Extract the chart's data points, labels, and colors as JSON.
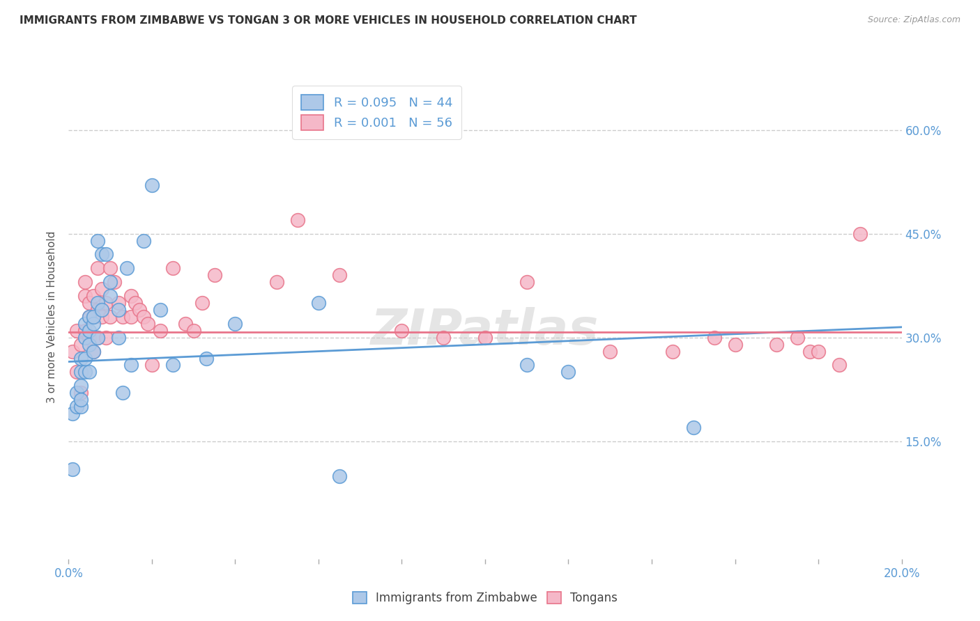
{
  "title": "IMMIGRANTS FROM ZIMBABWE VS TONGAN 3 OR MORE VEHICLES IN HOUSEHOLD CORRELATION CHART",
  "source": "Source: ZipAtlas.com",
  "ylabel": "3 or more Vehicles in Household",
  "yticks_labels": [
    "60.0%",
    "45.0%",
    "30.0%",
    "15.0%"
  ],
  "ytick_vals": [
    0.6,
    0.45,
    0.3,
    0.15
  ],
  "xlim": [
    0.0,
    0.2
  ],
  "ylim": [
    -0.02,
    0.68
  ],
  "legend1_label": "R = 0.095   N = 44",
  "legend2_label": "R = 0.001   N = 56",
  "series1_color": "#adc8e8",
  "series2_color": "#f5b8c8",
  "line1_color": "#5b9bd5",
  "line2_color": "#e8748a",
  "background_color": "#ffffff",
  "grid_color": "#cccccc",
  "watermark": "ZIPatlas",
  "tick_color": "#5b9bd5",
  "zimbabwe_x": [
    0.001,
    0.001,
    0.002,
    0.002,
    0.003,
    0.003,
    0.003,
    0.003,
    0.003,
    0.004,
    0.004,
    0.004,
    0.004,
    0.005,
    0.005,
    0.005,
    0.005,
    0.006,
    0.006,
    0.006,
    0.007,
    0.007,
    0.007,
    0.008,
    0.008,
    0.009,
    0.01,
    0.01,
    0.012,
    0.012,
    0.013,
    0.014,
    0.015,
    0.018,
    0.02,
    0.022,
    0.025,
    0.033,
    0.04,
    0.06,
    0.065,
    0.11,
    0.12,
    0.15
  ],
  "zimbabwe_y": [
    0.11,
    0.19,
    0.2,
    0.22,
    0.2,
    0.21,
    0.23,
    0.25,
    0.27,
    0.25,
    0.27,
    0.3,
    0.32,
    0.25,
    0.29,
    0.31,
    0.33,
    0.28,
    0.32,
    0.33,
    0.3,
    0.35,
    0.44,
    0.34,
    0.42,
    0.42,
    0.36,
    0.38,
    0.3,
    0.34,
    0.22,
    0.4,
    0.26,
    0.44,
    0.52,
    0.34,
    0.26,
    0.27,
    0.32,
    0.35,
    0.1,
    0.26,
    0.25,
    0.17
  ],
  "tongan_x": [
    0.001,
    0.002,
    0.002,
    0.003,
    0.003,
    0.004,
    0.004,
    0.004,
    0.005,
    0.005,
    0.005,
    0.006,
    0.006,
    0.006,
    0.007,
    0.007,
    0.007,
    0.008,
    0.008,
    0.009,
    0.009,
    0.01,
    0.01,
    0.011,
    0.012,
    0.013,
    0.015,
    0.015,
    0.016,
    0.017,
    0.018,
    0.019,
    0.02,
    0.022,
    0.025,
    0.028,
    0.03,
    0.032,
    0.035,
    0.05,
    0.055,
    0.065,
    0.08,
    0.09,
    0.1,
    0.11,
    0.13,
    0.145,
    0.155,
    0.16,
    0.17,
    0.175,
    0.178,
    0.18,
    0.185,
    0.19
  ],
  "tongan_y": [
    0.28,
    0.25,
    0.31,
    0.22,
    0.29,
    0.31,
    0.36,
    0.38,
    0.3,
    0.33,
    0.35,
    0.28,
    0.33,
    0.36,
    0.3,
    0.34,
    0.4,
    0.33,
    0.37,
    0.3,
    0.35,
    0.33,
    0.4,
    0.38,
    0.35,
    0.33,
    0.33,
    0.36,
    0.35,
    0.34,
    0.33,
    0.32,
    0.26,
    0.31,
    0.4,
    0.32,
    0.31,
    0.35,
    0.39,
    0.38,
    0.47,
    0.39,
    0.31,
    0.3,
    0.3,
    0.38,
    0.28,
    0.28,
    0.3,
    0.29,
    0.29,
    0.3,
    0.28,
    0.28,
    0.26,
    0.45
  ],
  "zimbabwe_line": {
    "x0": 0.0,
    "x1": 0.2,
    "y0": 0.265,
    "y1": 0.315
  },
  "tongan_line": {
    "x0": 0.0,
    "x1": 0.2,
    "y0": 0.308,
    "y1": 0.308
  },
  "xtick_positions": [
    0.0,
    0.02,
    0.04,
    0.06,
    0.08,
    0.1,
    0.12,
    0.14,
    0.16,
    0.18,
    0.2
  ]
}
